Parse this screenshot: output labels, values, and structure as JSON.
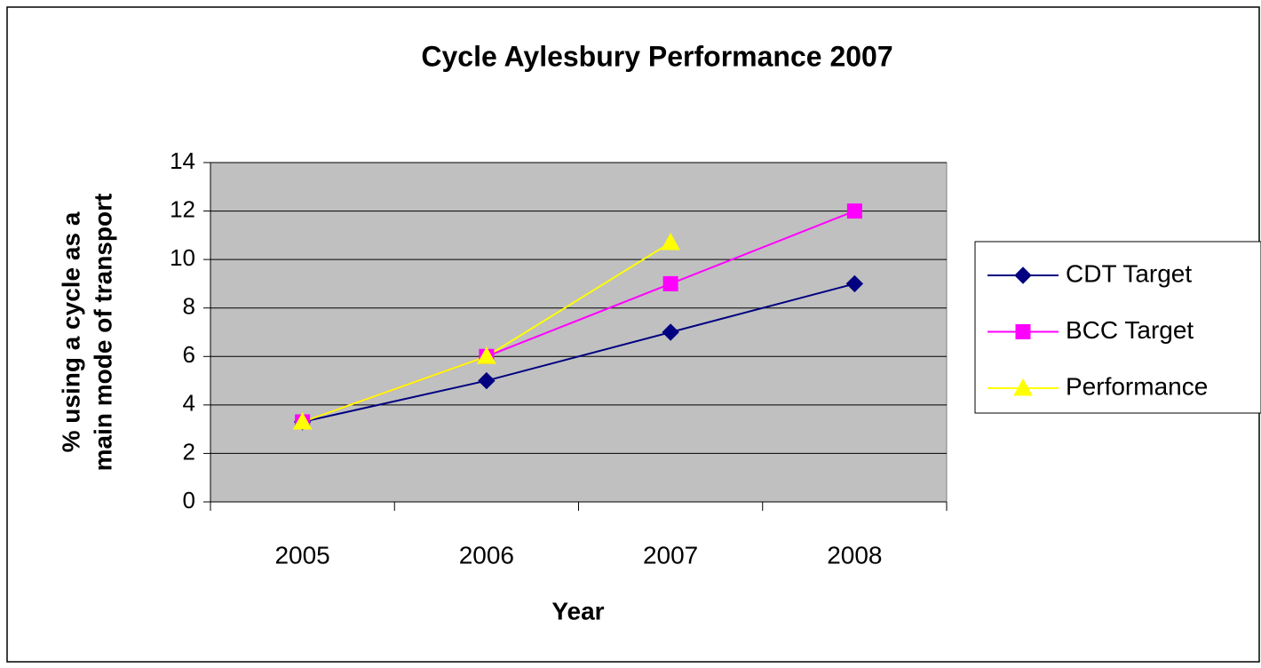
{
  "chart_data": {
    "type": "line",
    "title": "Cycle Aylesbury Performance 2007",
    "x_label": "Year",
    "y_label": [
      "% using a cycle as a",
      "main mode of transport"
    ],
    "categories": [
      "2005",
      "2006",
      "2007",
      "2008"
    ],
    "series": [
      {
        "name": "CDT Target",
        "color": "#000080",
        "marker": "diamond",
        "values": [
          3.3,
          5,
          7,
          9
        ]
      },
      {
        "name": "BCC Target",
        "color": "#ff00ff",
        "marker": "square",
        "values": [
          3.3,
          6,
          9,
          12
        ]
      },
      {
        "name": "Performance",
        "color": "#ffff00",
        "marker": "triangle",
        "values": [
          3.3,
          6,
          10.7,
          null
        ]
      }
    ],
    "ylim": [
      0,
      14
    ],
    "yticks": [
      0,
      2,
      4,
      6,
      8,
      10,
      12,
      14
    ],
    "grid": true,
    "legend": "right",
    "plot_background": "#c0c0c0"
  }
}
